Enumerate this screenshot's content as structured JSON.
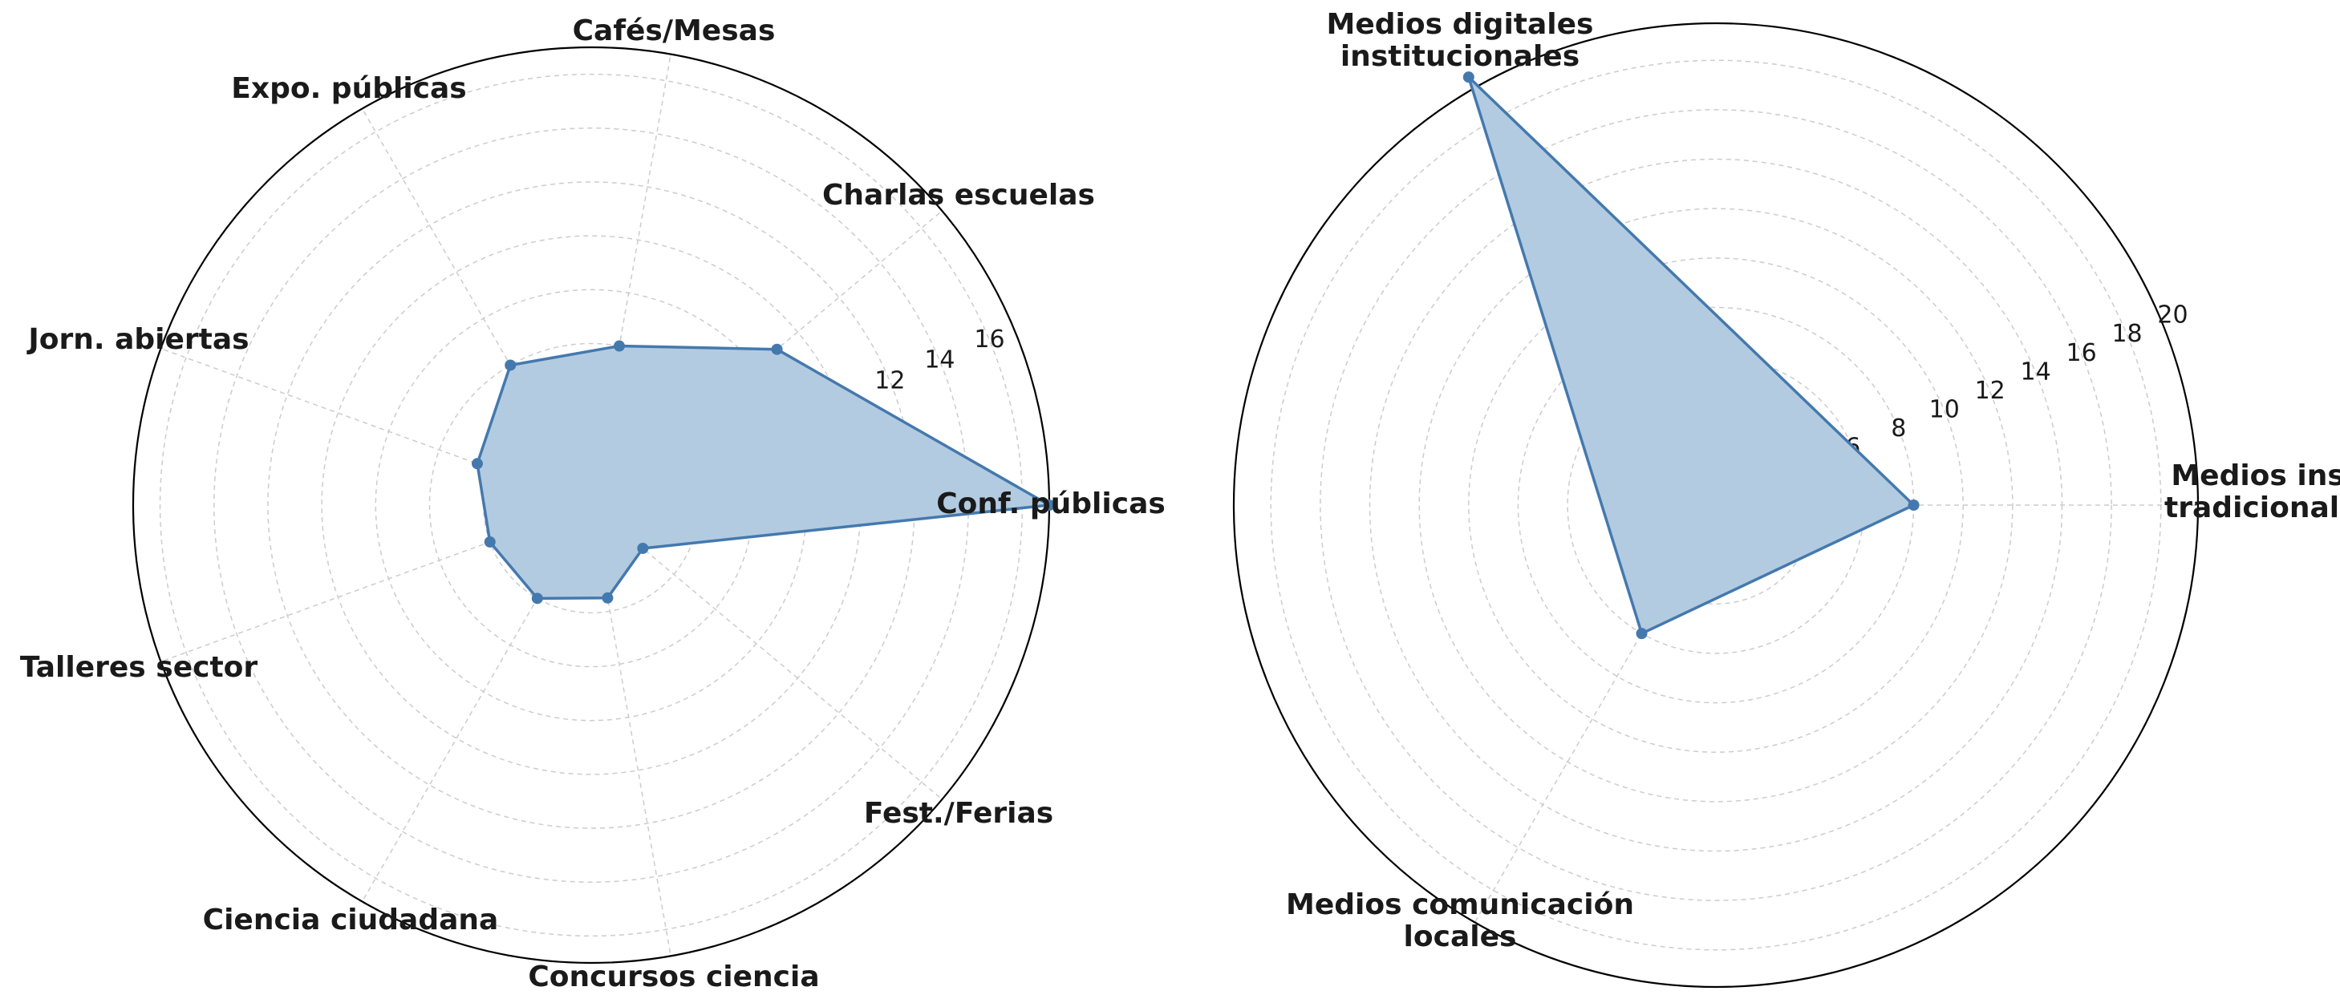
{
  "colors": {
    "fill": "#b3cbe0",
    "line": "#4479ae",
    "marker": "#4479ae",
    "grid": "#cccccc",
    "frame": "#000000"
  },
  "chart_data": [
    {
      "type": "radar",
      "categories": [
        "Conf. públicas",
        "Charlas escuelas",
        "Cafés/Mesas",
        "Expo. públicas",
        "Jorn. abiertas",
        "Talleres sector",
        "Ciencia ciudadana",
        "Concursos ciencia",
        "Fest./Ferias"
      ],
      "values": [
        17,
        9,
        6,
        6,
        4.5,
        4,
        4,
        3.5,
        2.5
      ],
      "rlim": [
        0,
        17
      ],
      "rticks": [
        0,
        2,
        4,
        6,
        8,
        10,
        12,
        14,
        16
      ],
      "grid": true
    },
    {
      "type": "radar",
      "categories": [
        "Medios inst.\ntradicionales",
        "Medios digitales\ninstitucionales",
        "Medios comunicación\nlocales"
      ],
      "values": [
        8,
        20,
        6
      ],
      "rlim": [
        0,
        19.5
      ],
      "rticks": [
        0,
        2,
        4,
        6,
        8,
        10,
        12,
        14,
        16,
        18,
        20
      ],
      "grid": true
    }
  ]
}
